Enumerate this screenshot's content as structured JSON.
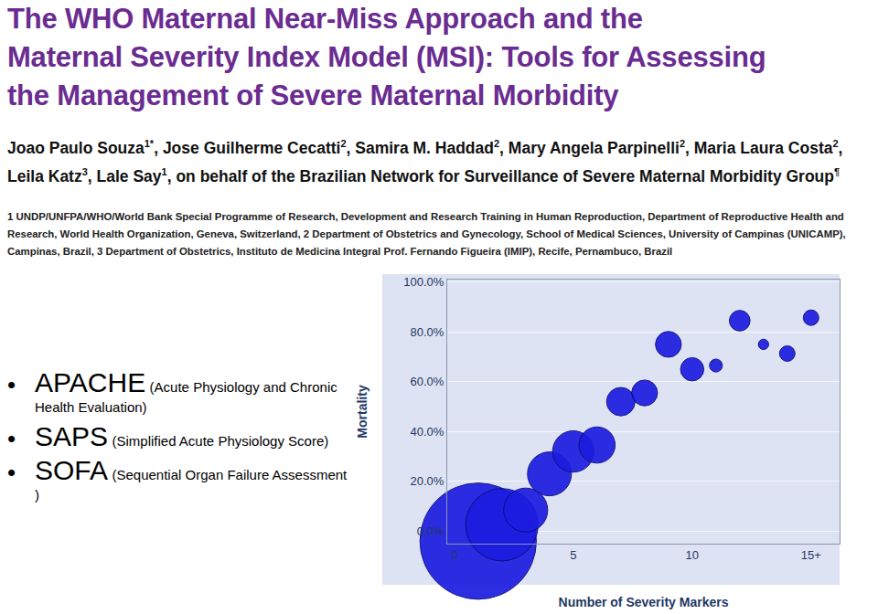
{
  "slide": {
    "title_lines": [
      "The WHO Maternal Near-Miss Approach and the",
      "Maternal Severity Index Model (MSI): Tools for Assessing",
      "the Management of Severe Maternal Morbidity"
    ],
    "authors": [
      {
        "text": "Joao Paulo Souza",
        "sup": "1*"
      },
      {
        "text": ", Jose Guilherme Cecatti",
        "sup": "2"
      },
      {
        "text": ", Samira M. Haddad",
        "sup": "2"
      },
      {
        "text": ", Mary Angela Parpinelli",
        "sup": "2"
      },
      {
        "text": ", Maria Laura Costa",
        "sup": "2"
      },
      {
        "text": ", Leila Katz",
        "sup": "3"
      },
      {
        "text": ", Lale Say",
        "sup": "1"
      },
      {
        "text": ", on behalf of the Brazilian Network for Surveillance of Severe Maternal Morbidity Group",
        "sup": "¶"
      }
    ],
    "affiliations": "1 UNDP/UNFPA/WHO/World Bank Special Programme of Research, Development and Research Training in Human Reproduction, Department of Reproductive Health and Research, World Health Organization, Geneva, Switzerland, 2 Department of Obstetrics and Gynecology, School of Medical Sciences, University of Campinas (UNICAMP), Campinas, Brazil, 3 Department of Obstetrics, Instituto de Medicina Integral Prof. Fernando Figueira (IMIP), Recife, Pernambuco, Brazil",
    "bullets": [
      {
        "term": "APACHE",
        "expansion": "(Acute Physiology and Chronic Health Evaluation)"
      },
      {
        "term": "SAPS",
        "expansion": "(Simplified Acute Physiology Score)"
      },
      {
        "term": "SOFA",
        "expansion": "(Sequential Organ Failure Assessment )"
      }
    ]
  },
  "chart_data": {
    "type": "scatter",
    "marker": "bubble",
    "color": "#1c1ce0",
    "xlabel": "Number of Severity Markers",
    "ylabel": "Mortality",
    "x": [
      1,
      2,
      3,
      4,
      5,
      6,
      7,
      8,
      9,
      10,
      11,
      12,
      13,
      14,
      15
    ],
    "values": [
      -4,
      2.6,
      8.5,
      23,
      32,
      34.6,
      52,
      55.5,
      75,
      65,
      66.5,
      84.5,
      75,
      71.3,
      85.7
    ],
    "sizes": [
      2025,
      784,
      289,
      289,
      256,
      196,
      121,
      100,
      100,
      81,
      25,
      64,
      16,
      36,
      36
    ],
    "xlim": [
      -0.3,
      16.2
    ],
    "ylim": [
      -5,
      101
    ],
    "xticks": [
      0,
      5,
      10,
      {
        "value": 15,
        "label": "15+"
      }
    ],
    "yticks": [
      {
        "value": 0,
        "label": "0.0%"
      },
      {
        "value": 20,
        "label": "20.0%"
      },
      {
        "value": 40,
        "label": "40.0%"
      },
      {
        "value": 60,
        "label": "60.0%"
      },
      {
        "value": 80,
        "label": "80.0%"
      },
      {
        "value": 100,
        "label": "100.0%"
      }
    ],
    "grid": true
  }
}
